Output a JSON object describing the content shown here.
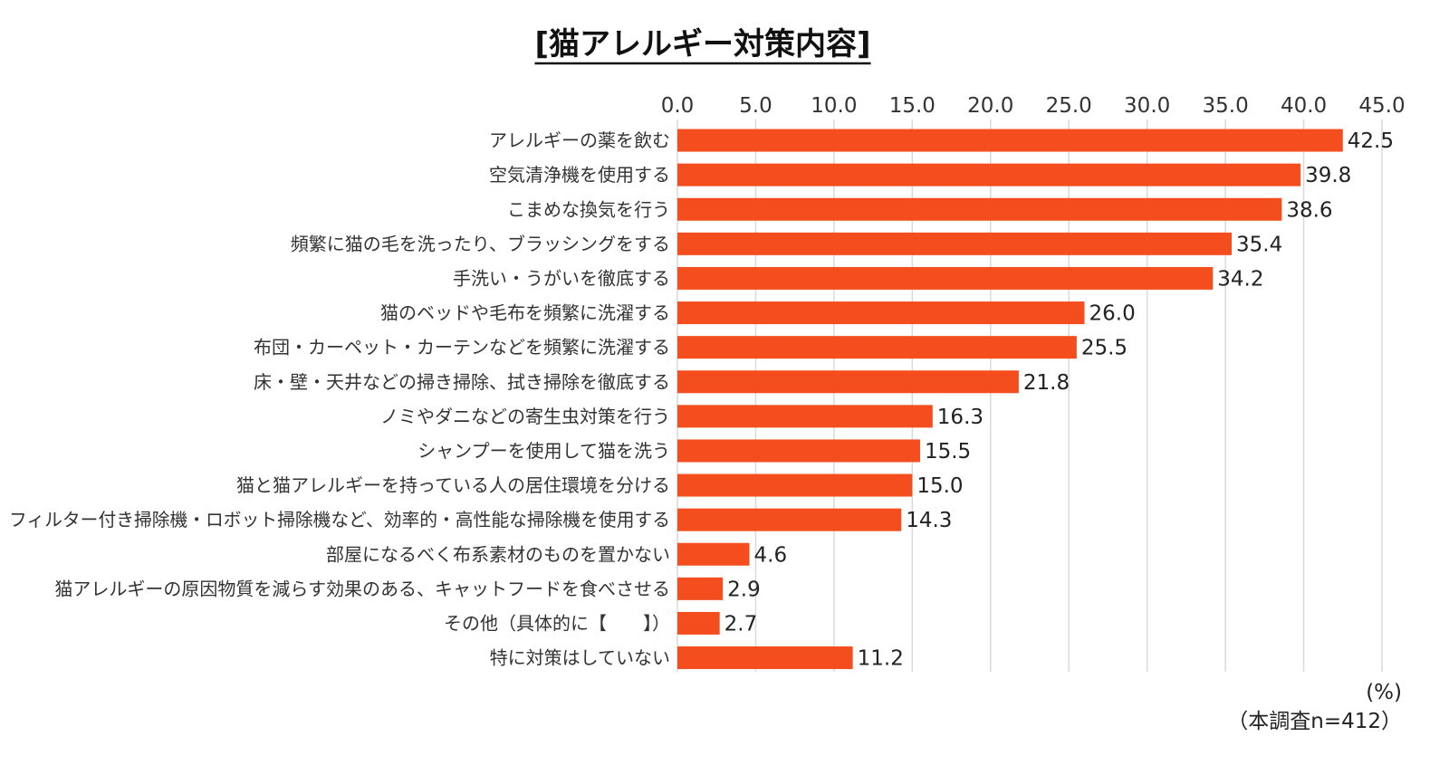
{
  "chart_data": {
    "type": "bar",
    "orientation": "horizontal",
    "title": "[猫アレルギー対策内容]",
    "categories": [
      "アレルギーの薬を飲む",
      "空気清浄機を使用する",
      "こまめな換気を行う",
      "頻繁に猫の毛を洗ったり、ブラッシングをする",
      "手洗い・うがいを徹底する",
      "猫のベッドや毛布を頻繁に洗濯する",
      "布団・カーペット・カーテンなどを頻繁に洗濯する",
      "床・壁・天井などの掃き掃除、拭き掃除を徹底する",
      "ノミやダニなどの寄生虫対策を行う",
      "シャンプーを使用して猫を洗う",
      "猫と猫アレルギーを持っている人の居住環境を分ける",
      "フィルター付き掃除機・ロボット掃除機など、効率的・高性能な掃除機を使用する",
      "部屋になるべく布系素材のものを置かない",
      "猫アレルギーの原因物質を減らす効果のある、キャットフードを食べさせる",
      "その他（具体的に【　　】）",
      "特に対策はしていない"
    ],
    "values": [
      42.5,
      39.8,
      38.6,
      35.4,
      34.2,
      26.0,
      25.5,
      21.8,
      16.3,
      15.5,
      15.0,
      14.3,
      4.6,
      2.9,
      2.7,
      11.2
    ],
    "value_labels": [
      "42.5",
      "39.8",
      "38.6",
      "35.4",
      "34.2",
      "26.0",
      "25.5",
      "21.8",
      "16.3",
      "15.5",
      "15.0",
      "14.3",
      "4.6",
      "2.9",
      "2.7",
      "11.2"
    ],
    "xlim": [
      0,
      45
    ],
    "tick_labels": [
      "0.0",
      "5.0",
      "10.0",
      "15.0",
      "20.0",
      "25.0",
      "30.0",
      "35.0",
      "40.0",
      "45.0"
    ],
    "axis_position": "top",
    "grid": true,
    "unit_label": "(%)",
    "sample_note": "（本調査n=412）",
    "bar_color": "#f44d1e"
  }
}
